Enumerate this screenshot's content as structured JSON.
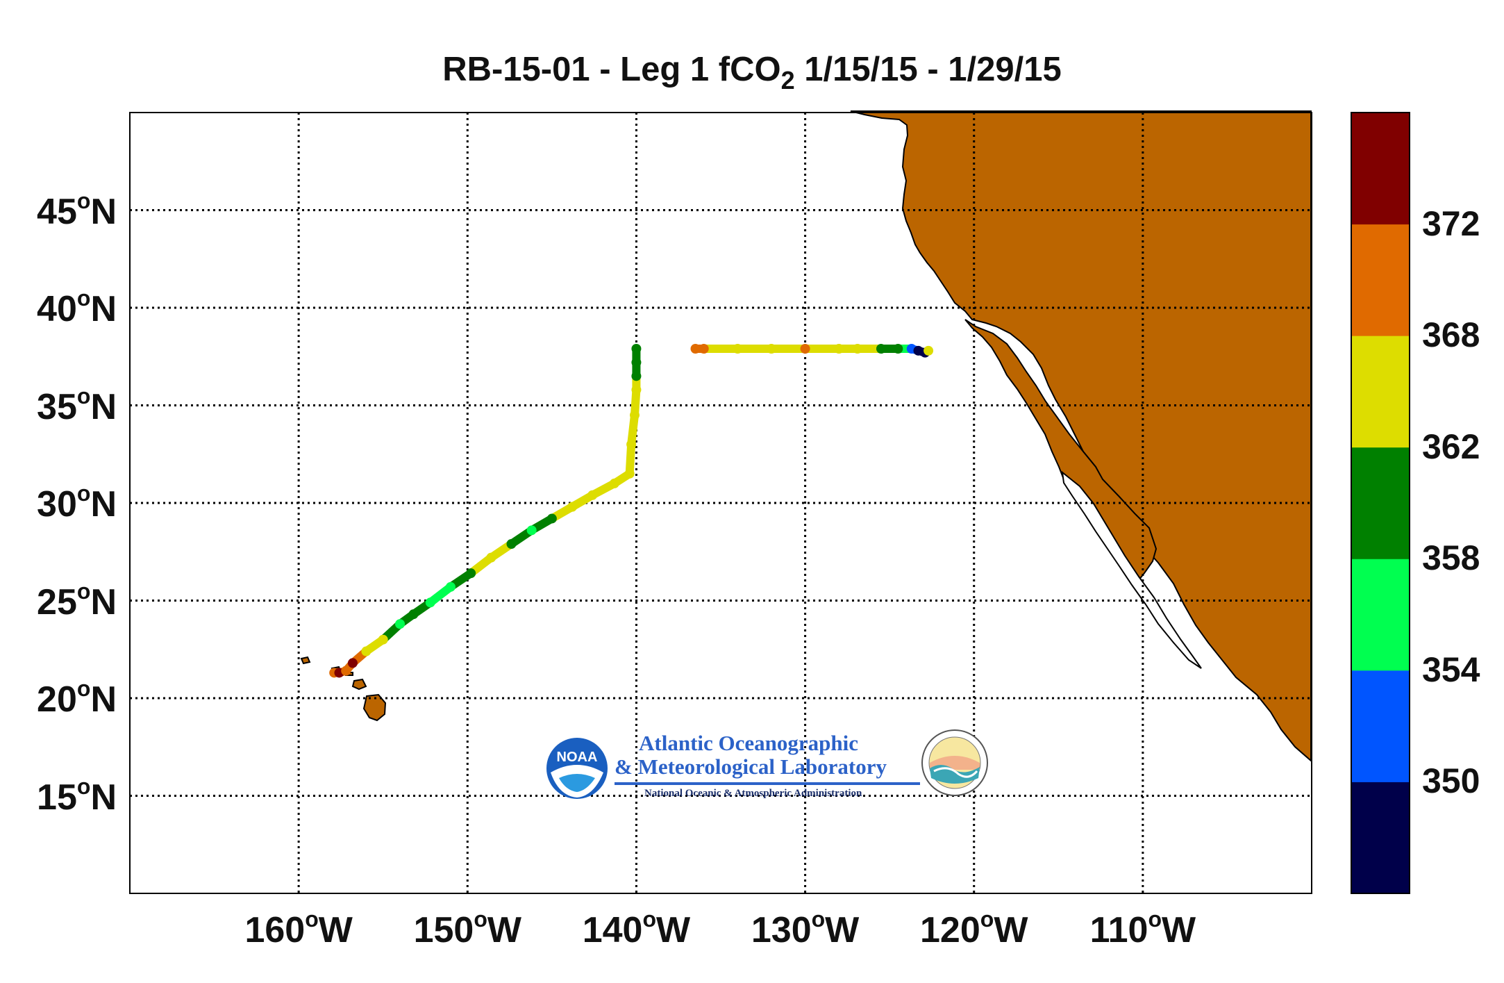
{
  "title": {
    "main": "RB-15-01 - Leg 1 fCO",
    "sub": "2",
    "dates": " 1/15/15 - 1/29/15"
  },
  "map": {
    "lon_range": [
      -170,
      -100
    ],
    "lat_range": [
      10,
      50
    ],
    "land_color": "#bb6500",
    "grid": "dotted",
    "lat_ticks": [
      {
        "value": 45,
        "text": "45",
        "hemi": "N"
      },
      {
        "value": 40,
        "text": "40",
        "hemi": "N"
      },
      {
        "value": 35,
        "text": "35",
        "hemi": "N"
      },
      {
        "value": 30,
        "text": "30",
        "hemi": "N"
      },
      {
        "value": 25,
        "text": "25",
        "hemi": "N"
      },
      {
        "value": 20,
        "text": "20",
        "hemi": "N"
      },
      {
        "value": 15,
        "text": "15",
        "hemi": "N"
      }
    ],
    "lon_ticks": [
      {
        "value": -160,
        "text": "160",
        "hemi": "W"
      },
      {
        "value": -150,
        "text": "150",
        "hemi": "W"
      },
      {
        "value": -140,
        "text": "140",
        "hemi": "W"
      },
      {
        "value": -130,
        "text": "130",
        "hemi": "W"
      },
      {
        "value": -120,
        "text": "120",
        "hemi": "W"
      },
      {
        "value": -110,
        "text": "110",
        "hemi": "W"
      }
    ],
    "degree_symbol": "o"
  },
  "colorbar": {
    "colors": [
      "#00004a",
      "#0055ff",
      "#00ff50",
      "#008000",
      "#dddd00",
      "#e06a00",
      "#800000"
    ],
    "bounds": [
      346,
      350,
      354,
      358,
      362,
      368,
      372,
      376
    ],
    "labels": [
      {
        "value": 372,
        "text": "372"
      },
      {
        "value": 368,
        "text": "368"
      },
      {
        "value": 362,
        "text": "362"
      },
      {
        "value": 358,
        "text": "358"
      },
      {
        "value": 354,
        "text": "354"
      },
      {
        "value": 350,
        "text": "350"
      }
    ]
  },
  "track": [
    {
      "lon": -157.9,
      "lat": 21.3,
      "fco2": 371
    },
    {
      "lon": -157.6,
      "lat": 21.3,
      "fco2": 373
    },
    {
      "lon": -157.2,
      "lat": 21.4,
      "fco2": 370
    },
    {
      "lon": -156.8,
      "lat": 21.8,
      "fco2": 373
    },
    {
      "lon": -156.0,
      "lat": 22.4,
      "fco2": 363
    },
    {
      "lon": -155.0,
      "lat": 23.0,
      "fco2": 364
    },
    {
      "lon": -154.0,
      "lat": 23.8,
      "fco2": 357
    },
    {
      "lon": -153.2,
      "lat": 24.3,
      "fco2": 360
    },
    {
      "lon": -152.2,
      "lat": 24.9,
      "fco2": 356
    },
    {
      "lon": -151.0,
      "lat": 25.7,
      "fco2": 356
    },
    {
      "lon": -149.8,
      "lat": 26.4,
      "fco2": 360
    },
    {
      "lon": -148.6,
      "lat": 27.2,
      "fco2": 364
    },
    {
      "lon": -147.4,
      "lat": 27.9,
      "fco2": 360
    },
    {
      "lon": -146.2,
      "lat": 28.6,
      "fco2": 357
    },
    {
      "lon": -145.0,
      "lat": 29.2,
      "fco2": 360
    },
    {
      "lon": -143.8,
      "lat": 29.8,
      "fco2": 364
    },
    {
      "lon": -142.6,
      "lat": 30.4,
      "fco2": 364
    },
    {
      "lon": -141.3,
      "lat": 31.0,
      "fco2": 364
    },
    {
      "lon": -140.4,
      "lat": 31.5,
      "fco2": 364
    },
    {
      "lon": -140.3,
      "lat": 33.0,
      "fco2": 364
    },
    {
      "lon": -140.1,
      "lat": 34.5,
      "fco2": 364
    },
    {
      "lon": -140.0,
      "lat": 35.8,
      "fco2": 364
    },
    {
      "lon": -140.0,
      "lat": 36.5,
      "fco2": 360
    },
    {
      "lon": -140.0,
      "lat": 37.2,
      "fco2": 360
    },
    {
      "lon": -140.0,
      "lat": 37.9,
      "fco2": 360
    },
    {
      "lon": -136.5,
      "lat": 37.9,
      "fco2": 370
    },
    {
      "lon": -136.0,
      "lat": 37.9,
      "fco2": 370
    },
    {
      "lon": -134.0,
      "lat": 37.9,
      "fco2": 365
    },
    {
      "lon": -132.0,
      "lat": 37.9,
      "fco2": 365
    },
    {
      "lon": -130.0,
      "lat": 37.9,
      "fco2": 369
    },
    {
      "lon": -128.0,
      "lat": 37.9,
      "fco2": 365
    },
    {
      "lon": -126.9,
      "lat": 37.9,
      "fco2": 364
    },
    {
      "lon": -125.5,
      "lat": 37.9,
      "fco2": 360
    },
    {
      "lon": -124.5,
      "lat": 37.9,
      "fco2": 360
    },
    {
      "lon": -123.7,
      "lat": 37.9,
      "fco2": 352
    },
    {
      "lon": -123.3,
      "lat": 37.8,
      "fco2": 348
    },
    {
      "lon": -122.9,
      "lat": 37.7,
      "fco2": 348
    },
    {
      "lon": -122.7,
      "lat": 37.8,
      "fco2": 366
    }
  ],
  "logo": {
    "line1": "Atlantic Oceanographic",
    "line2": "& Meteorological Laboratory",
    "line3": "National Oceanic & Atmospheric Administration",
    "noaa_text": "NOAA"
  }
}
